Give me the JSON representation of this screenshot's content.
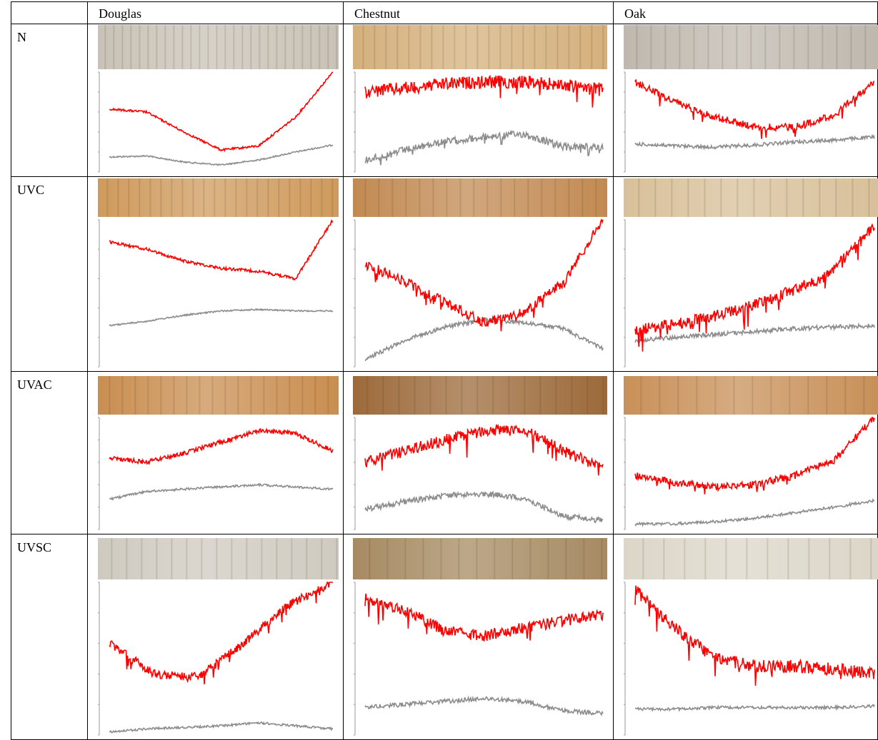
{
  "table": {
    "columns": [
      "Douglas",
      "Chestnut",
      "Oak"
    ],
    "rows": [
      "N",
      "UVC",
      "UVAC",
      "UVSC"
    ]
  }
}
